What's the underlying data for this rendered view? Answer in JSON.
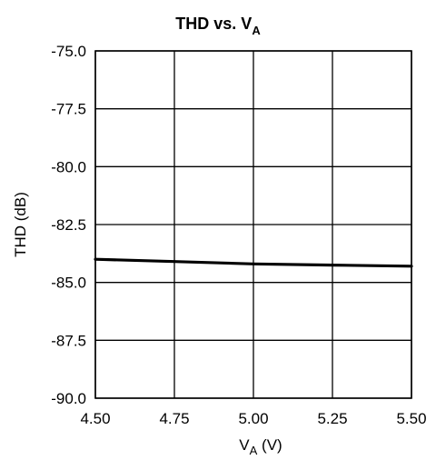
{
  "chart_data": {
    "type": "line",
    "title": "THD vs. V",
    "title_subscript": "A",
    "xlabel_main": "V",
    "xlabel_subscript": "A",
    "xlabel_unit": " (V)",
    "ylabel": "THD (dB)",
    "xlim": [
      4.5,
      5.5
    ],
    "ylim": [
      -90.0,
      -75.0
    ],
    "x_ticks": [
      "4.50",
      "4.75",
      "5.00",
      "5.25",
      "5.50"
    ],
    "y_ticks": [
      "-75.0",
      "-77.5",
      "-80.0",
      "-82.5",
      "-85.0",
      "-87.5",
      "-90.0"
    ],
    "grid": true,
    "series": [
      {
        "x": [
          4.5,
          4.75,
          5.0,
          5.25,
          5.5
        ],
        "y": [
          -84.0,
          -84.1,
          -84.2,
          -84.25,
          -84.3
        ]
      }
    ]
  }
}
